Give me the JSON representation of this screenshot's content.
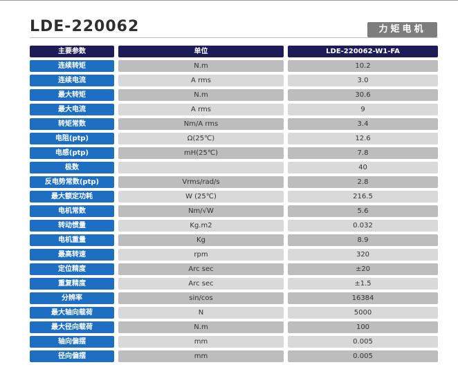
{
  "title": "LDE-220062",
  "badge": "力矩电机",
  "table": {
    "headers": [
      "主要参数",
      "单位",
      "LDE-220062-W1-FA"
    ],
    "rows": [
      {
        "param": "连续转矩",
        "unit": "N.m",
        "value": "10.2"
      },
      {
        "param": "连续电流",
        "unit": "A rms",
        "value": "3.0"
      },
      {
        "param": "最大转矩",
        "unit": "N.m",
        "value": "30.6"
      },
      {
        "param": "最大电流",
        "unit": "A rms",
        "value": "9"
      },
      {
        "param": "转矩常数",
        "unit": "Nm/A rms",
        "value": "3.4"
      },
      {
        "param": "电阻(ptp)",
        "unit": "Ω(25℃)",
        "value": "12.6"
      },
      {
        "param": "电感(ptp)",
        "unit": "mH(25℃)",
        "value": "7.8"
      },
      {
        "param": "极数",
        "unit": "",
        "value": "40"
      },
      {
        "param": "反电势常数(ptp)",
        "unit": "Vrms/rad/s",
        "value": "2.8"
      },
      {
        "param": "最大额定功耗",
        "unit": "W (25℃)",
        "value": "216.5"
      },
      {
        "param": "电机常数",
        "unit": "Nm/√W",
        "value": "5.6"
      },
      {
        "param": "转动惯量",
        "unit": "Kg.m2",
        "value": "0.032"
      },
      {
        "param": "电机重量",
        "unit": "Kg",
        "value": "8.9"
      },
      {
        "param": "最高转速",
        "unit": "rpm",
        "value": "320"
      },
      {
        "param": "定位精度",
        "unit": "Arc sec",
        "value": "±20"
      },
      {
        "param": "重复精度",
        "unit": "Arc sec",
        "value": "±1.5"
      },
      {
        "param": "分辨率",
        "unit": "sin/cos",
        "value": "16384"
      },
      {
        "param": "最大轴向载荷",
        "unit": "N",
        "value": "5000"
      },
      {
        "param": "最大径向载荷",
        "unit": "N.m",
        "value": "100"
      },
      {
        "param": "轴向偏摆",
        "unit": "mm",
        "value": "0.005"
      },
      {
        "param": "径向偏摆",
        "unit": "mm",
        "value": "0.005"
      }
    ]
  }
}
